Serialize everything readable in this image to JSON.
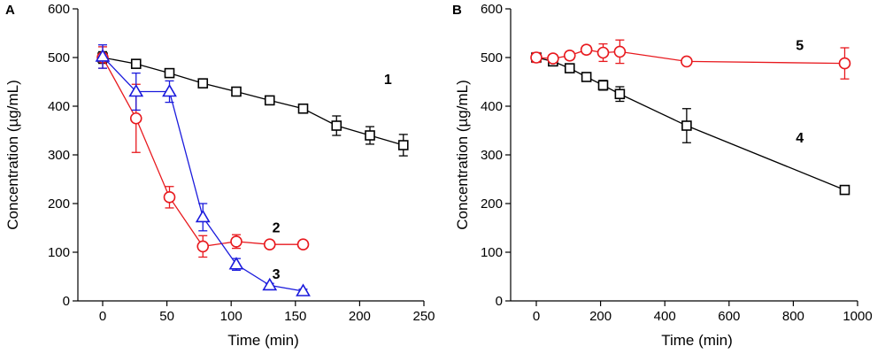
{
  "chart_data": [
    {
      "type": "line",
      "panel_label": "A",
      "xlabel": "Time (min)",
      "ylabel": "Concentration (µg/mL)",
      "xlim": [
        -15,
        250
      ],
      "ylim": [
        0,
        600
      ],
      "xticks": [
        0,
        50,
        100,
        150,
        200,
        250
      ],
      "yticks": [
        0,
        100,
        200,
        300,
        400,
        500,
        600
      ],
      "series": [
        {
          "name": "1",
          "color": "#000000",
          "marker": "square",
          "x": [
            0,
            26,
            52,
            78,
            104,
            130,
            156,
            182,
            208,
            234
          ],
          "y": [
            500,
            487,
            468,
            447,
            430,
            412,
            395,
            360,
            340,
            320
          ],
          "err": [
            12,
            8,
            8,
            8,
            8,
            8,
            8,
            20,
            18,
            22
          ],
          "label_pos": [
            222,
            455
          ]
        },
        {
          "name": "2",
          "color": "#e8191e",
          "marker": "circle",
          "x": [
            0,
            26,
            52,
            78,
            104,
            130,
            156
          ],
          "y": [
            500,
            375,
            213,
            112,
            122,
            116,
            116
          ],
          "err": [
            22,
            70,
            22,
            22,
            14,
            6,
            6
          ],
          "label_pos": [
            135,
            150
          ]
        },
        {
          "name": "3",
          "color": "#1a1adc",
          "marker": "triangle",
          "x": [
            0,
            26,
            52,
            78,
            104,
            130,
            156
          ],
          "y": [
            502,
            430,
            430,
            172,
            75,
            32,
            20
          ],
          "err": [
            24,
            38,
            22,
            28,
            12,
            4,
            4
          ],
          "label_pos": [
            135,
            55
          ]
        }
      ]
    },
    {
      "type": "line",
      "panel_label": "B",
      "xlabel": "Time (min)",
      "ylabel": "Concentration (µg/mL)",
      "xlim": [
        -60,
        1000
      ],
      "ylim": [
        0,
        600
      ],
      "xticks": [
        0,
        200,
        400,
        600,
        800,
        1000
      ],
      "yticks": [
        0,
        100,
        200,
        300,
        400,
        500,
        600
      ],
      "series": [
        {
          "name": "4",
          "color": "#000000",
          "marker": "square",
          "x": [
            0,
            52,
            104,
            156,
            208,
            260,
            468,
            960
          ],
          "y": [
            500,
            492,
            478,
            460,
            443,
            425,
            360,
            228
          ],
          "err": [
            6,
            6,
            6,
            6,
            10,
            15,
            35,
            8
          ],
          "label_pos": [
            820,
            335
          ]
        },
        {
          "name": "5",
          "color": "#e8191e",
          "marker": "circle",
          "x": [
            0,
            52,
            104,
            156,
            208,
            260,
            468,
            960
          ],
          "y": [
            500,
            498,
            504,
            516,
            510,
            512,
            492,
            488
          ],
          "err": [
            10,
            8,
            8,
            8,
            18,
            24,
            6,
            32
          ],
          "label_pos": [
            820,
            525
          ]
        }
      ]
    }
  ]
}
